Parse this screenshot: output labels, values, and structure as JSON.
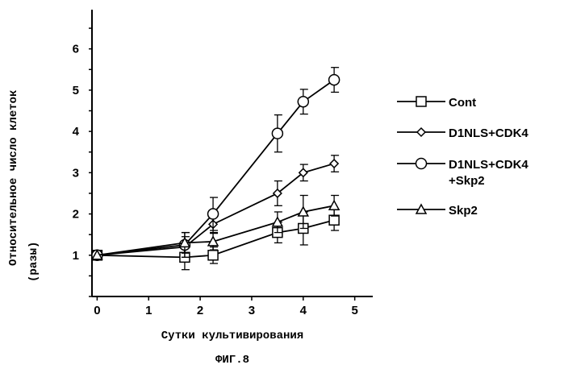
{
  "chart_data": {
    "type": "line",
    "title": "",
    "xlabel": "Сутки культивирования",
    "ylabel_line1": "Относительное число клеток",
    "ylabel_line2": "(разы)",
    "figure_caption": "ФИГ.8",
    "xlim": [
      -0.1,
      5.35
    ],
    "ylim": [
      0,
      6.95
    ],
    "x_ticks": [
      0,
      1,
      2,
      3,
      4,
      5
    ],
    "y_ticks": [
      1,
      2,
      3,
      4,
      5,
      6
    ],
    "x": [
      0,
      1.7,
      2.25,
      3.5,
      4.0,
      4.6
    ],
    "grid": false,
    "legend_position": "right",
    "series": [
      {
        "name": "Cont",
        "marker": "square",
        "values": [
          1.0,
          0.95,
          1.0,
          1.55,
          1.65,
          1.85
        ],
        "errors": [
          0,
          0.3,
          0.2,
          0.25,
          0.4,
          0.25
        ]
      },
      {
        "name": "D1NLS+CDK4",
        "marker": "diamond",
        "values": [
          1.0,
          1.2,
          1.75,
          2.5,
          3.0,
          3.22
        ],
        "errors": [
          0,
          0.25,
          0.2,
          0.3,
          0.2,
          0.2
        ]
      },
      {
        "name": "D1NLS+CDK4 +Skp2",
        "name_line1": "D1NLS+CDK4",
        "name_line2": "+Skp2",
        "marker": "circle",
        "values": [
          1.0,
          1.25,
          2.0,
          3.95,
          4.72,
          5.25
        ],
        "errors": [
          0,
          0.3,
          0.4,
          0.45,
          0.3,
          0.3
        ]
      },
      {
        "name": "Skp2",
        "marker": "triangle",
        "values": [
          1.0,
          1.3,
          1.33,
          1.8,
          2.05,
          2.2
        ],
        "errors": [
          0,
          0.25,
          0.2,
          0.25,
          0.4,
          0.25
        ]
      }
    ]
  }
}
